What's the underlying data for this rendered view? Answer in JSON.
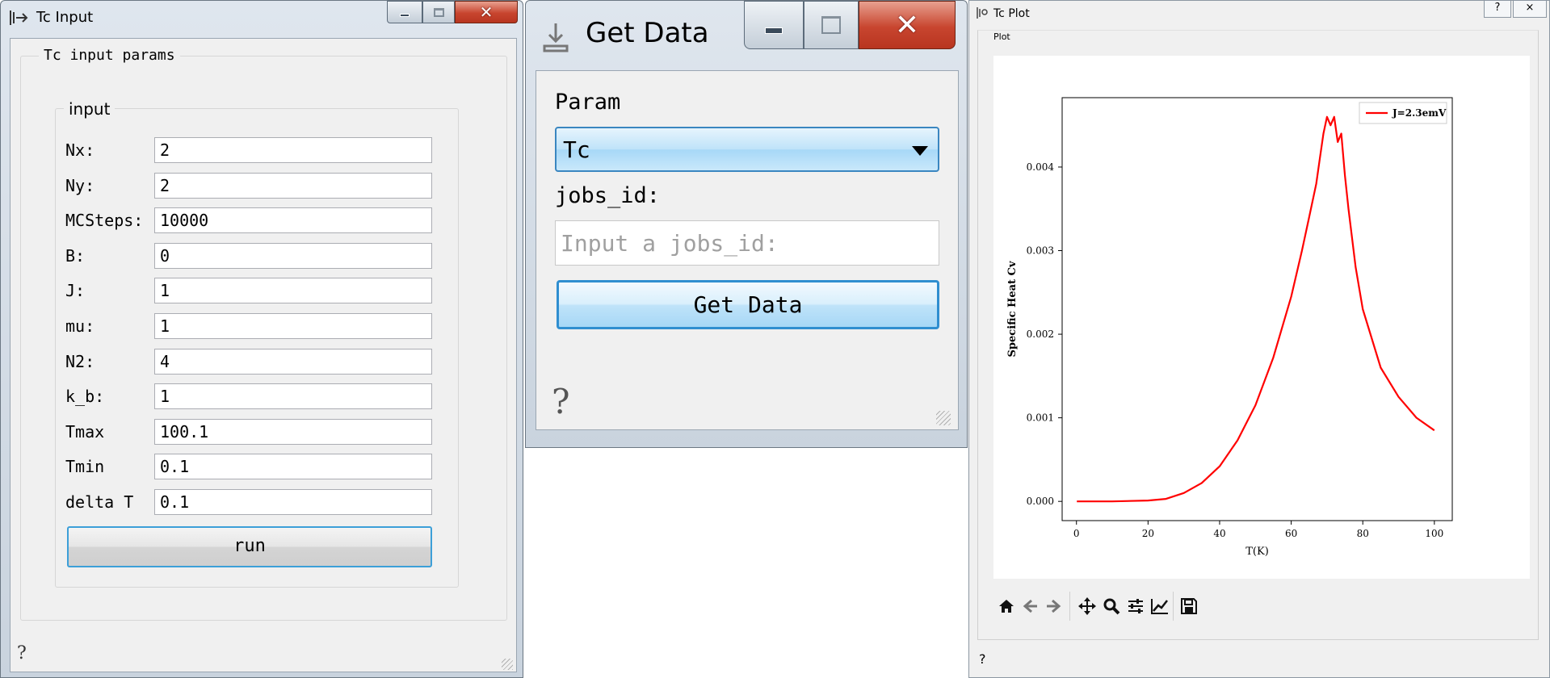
{
  "tc_input": {
    "title": "Tc Input",
    "outer_group": "Tc input params",
    "inner_group": "input",
    "fields": [
      {
        "label": "Nx:",
        "value": "2"
      },
      {
        "label": "Ny:",
        "value": "2"
      },
      {
        "label": "MCSteps:",
        "value": "10000"
      },
      {
        "label": "B:",
        "value": "0"
      },
      {
        "label": "J:",
        "value": "1"
      },
      {
        "label": "mu:",
        "value": "1"
      },
      {
        "label": "N2:",
        "value": "4"
      },
      {
        "label": "k_b:",
        "value": "1"
      },
      {
        "label": "Tmax",
        "value": "100.1"
      },
      {
        "label": "Tmin",
        "value": "0.1"
      },
      {
        "label": "delta T",
        "value": "0.1"
      }
    ],
    "run_label": "run",
    "help": "?"
  },
  "get_data": {
    "title": "Get Data",
    "param_label": "Param",
    "param_value": "Tc",
    "jobs_label": "jobs_id:",
    "jobs_value": "",
    "jobs_placeholder": "Input a jobs_id:",
    "button_label": "Get Data",
    "help": "?"
  },
  "tc_plot": {
    "title": "Tc Plot",
    "tab_label": "Plot",
    "help_btn": "?",
    "close_btn": "×",
    "help": "?",
    "toolbar": [
      "home-icon",
      "back-icon",
      "forward-icon",
      "pan-icon",
      "zoom-icon",
      "configure-subplots-icon",
      "edit-axis-icon",
      "save-icon"
    ]
  },
  "chart_data": {
    "type": "line",
    "title": "",
    "xlabel": "T(K)",
    "ylabel": "Specific Heat Cv",
    "xlim": [
      -4,
      105
    ],
    "ylim": [
      -0.00023,
      0.00483
    ],
    "xticks": [
      0,
      20,
      40,
      60,
      80,
      100
    ],
    "xtick_labels": [
      "0",
      "20",
      "40",
      "60",
      "80",
      "100"
    ],
    "yticks": [
      0.0,
      0.001,
      0.002,
      0.003,
      0.004
    ],
    "ytick_labels": [
      "0.000",
      "0.001",
      "0.002",
      "0.003",
      "0.004"
    ],
    "grid": false,
    "legend_position": "top-right",
    "series": [
      {
        "name": "J=2.3emV",
        "color": "#ff0000",
        "x": [
          0.1,
          10,
          20,
          25,
          30,
          35,
          40,
          45,
          50,
          55,
          60,
          63,
          65,
          67,
          68,
          69,
          70,
          71,
          72,
          73,
          74,
          75,
          76,
          78,
          80,
          85,
          90,
          95,
          100
        ],
        "y": [
          0.0,
          0.0,
          1e-05,
          3e-05,
          0.0001,
          0.00022,
          0.00042,
          0.00073,
          0.00115,
          0.00172,
          0.00245,
          0.003,
          0.0034,
          0.0038,
          0.0041,
          0.0044,
          0.0046,
          0.0045,
          0.0046,
          0.0043,
          0.0044,
          0.0039,
          0.0035,
          0.0028,
          0.0023,
          0.0016,
          0.00125,
          0.001,
          0.00085
        ]
      }
    ]
  }
}
